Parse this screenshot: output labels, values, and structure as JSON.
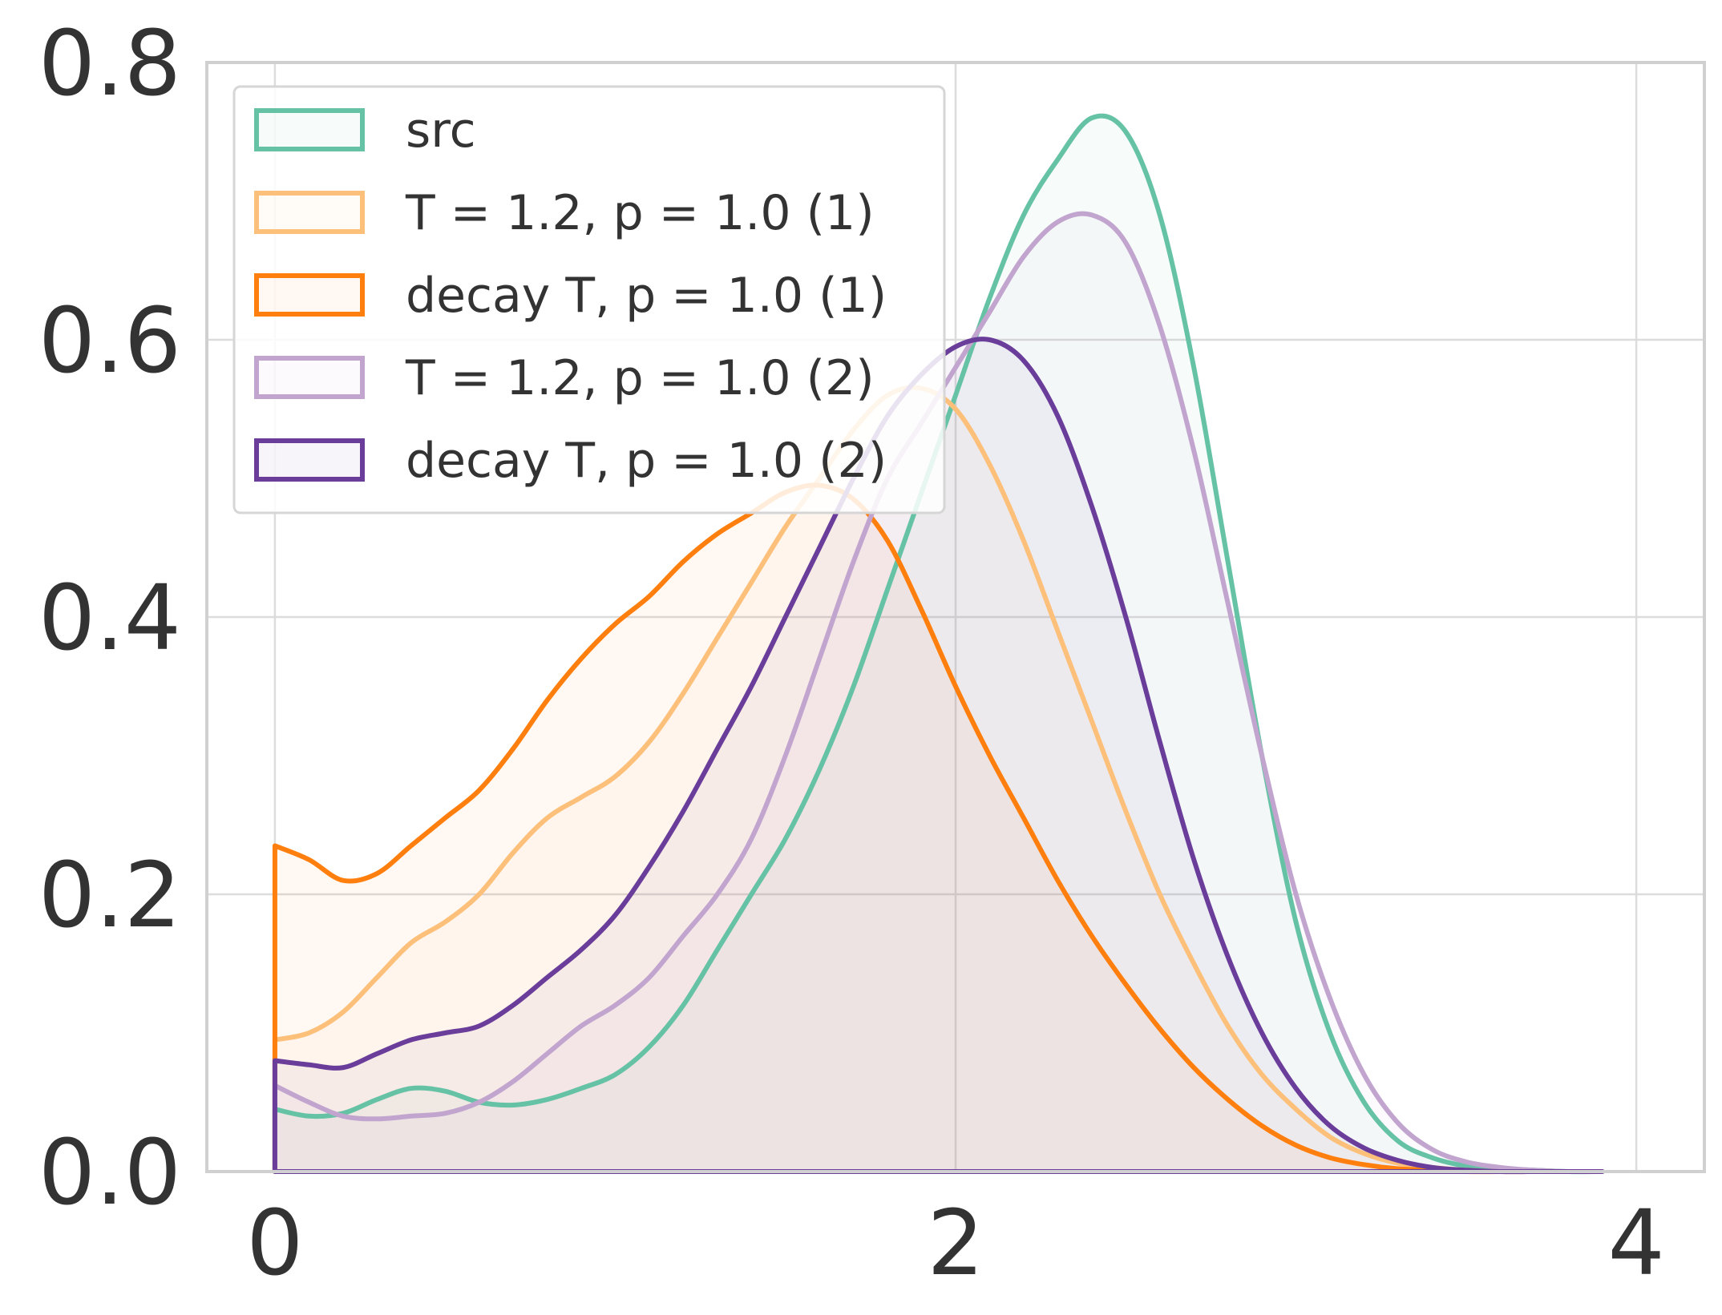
{
  "chart_data": {
    "type": "area",
    "title": "",
    "xlabel": "",
    "ylabel": "",
    "xlim": [
      -0.2,
      4.2
    ],
    "ylim": [
      0.0,
      0.8
    ],
    "xticks": [
      0,
      2,
      4
    ],
    "xtick_labels": [
      "0",
      "2",
      "4"
    ],
    "yticks": [
      0.0,
      0.2,
      0.4,
      0.6,
      0.8
    ],
    "ytick_labels": [
      "0.0",
      "0.2",
      "0.4",
      "0.6",
      "0.8"
    ],
    "grid": true,
    "legend_position": "top-left",
    "series": [
      {
        "name": "src",
        "color": "#66c2a5",
        "x": [
          0.0,
          0.1,
          0.2,
          0.3,
          0.4,
          0.5,
          0.6,
          0.7,
          0.8,
          0.9,
          1.0,
          1.1,
          1.2,
          1.3,
          1.4,
          1.5,
          1.6,
          1.7,
          1.8,
          1.9,
          2.0,
          2.1,
          2.2,
          2.3,
          2.4,
          2.5,
          2.6,
          2.7,
          2.8,
          2.9,
          3.0,
          3.1,
          3.2,
          3.3,
          3.4,
          3.5,
          3.6,
          3.7,
          3.8,
          3.9
        ],
        "values": [
          0.045,
          0.04,
          0.042,
          0.052,
          0.06,
          0.058,
          0.05,
          0.048,
          0.052,
          0.06,
          0.07,
          0.09,
          0.12,
          0.16,
          0.2,
          0.24,
          0.29,
          0.35,
          0.42,
          0.49,
          0.56,
          0.63,
          0.69,
          0.73,
          0.76,
          0.75,
          0.69,
          0.58,
          0.44,
          0.3,
          0.18,
          0.1,
          0.05,
          0.022,
          0.01,
          0.004,
          0.002,
          0.001,
          0.0,
          0.0
        ]
      },
      {
        "name": "T = 1.2, p = 1.0 (1)",
        "color": "#fdc07a",
        "x": [
          0.0,
          0.1,
          0.2,
          0.3,
          0.4,
          0.5,
          0.6,
          0.7,
          0.8,
          0.9,
          1.0,
          1.1,
          1.2,
          1.3,
          1.4,
          1.5,
          1.6,
          1.7,
          1.8,
          1.9,
          2.0,
          2.1,
          2.2,
          2.3,
          2.4,
          2.5,
          2.6,
          2.7,
          2.8,
          2.9,
          3.0,
          3.1,
          3.2,
          3.3,
          3.4,
          3.5,
          3.6,
          3.7,
          3.8,
          3.9
        ],
        "values": [
          0.095,
          0.1,
          0.115,
          0.14,
          0.165,
          0.18,
          0.2,
          0.23,
          0.255,
          0.27,
          0.285,
          0.31,
          0.345,
          0.385,
          0.425,
          0.465,
          0.5,
          0.535,
          0.56,
          0.565,
          0.55,
          0.51,
          0.455,
          0.39,
          0.325,
          0.26,
          0.2,
          0.15,
          0.105,
          0.07,
          0.045,
          0.025,
          0.013,
          0.006,
          0.003,
          0.001,
          0.0,
          0.0,
          0.0,
          0.0
        ]
      },
      {
        "name": "decay T, p = 1.0 (1)",
        "color": "#ff7f0e",
        "x": [
          0.0,
          0.1,
          0.2,
          0.3,
          0.4,
          0.5,
          0.6,
          0.7,
          0.8,
          0.9,
          1.0,
          1.1,
          1.2,
          1.3,
          1.4,
          1.5,
          1.6,
          1.7,
          1.8,
          1.9,
          2.0,
          2.1,
          2.2,
          2.3,
          2.4,
          2.5,
          2.6,
          2.7,
          2.8,
          2.9,
          3.0,
          3.1,
          3.2,
          3.3,
          3.4,
          3.5,
          3.6,
          3.7,
          3.8,
          3.9
        ],
        "values": [
          0.235,
          0.225,
          0.21,
          0.215,
          0.235,
          0.255,
          0.275,
          0.305,
          0.34,
          0.37,
          0.395,
          0.415,
          0.44,
          0.46,
          0.475,
          0.49,
          0.495,
          0.485,
          0.455,
          0.405,
          0.35,
          0.3,
          0.255,
          0.21,
          0.17,
          0.135,
          0.103,
          0.075,
          0.052,
          0.033,
          0.019,
          0.01,
          0.005,
          0.002,
          0.001,
          0.0,
          0.0,
          0.0,
          0.0,
          0.0
        ]
      },
      {
        "name": "T = 1.2, p = 1.0 (2)",
        "color": "#c2a5cf",
        "x": [
          0.0,
          0.1,
          0.2,
          0.3,
          0.4,
          0.5,
          0.6,
          0.7,
          0.8,
          0.9,
          1.0,
          1.1,
          1.2,
          1.3,
          1.4,
          1.5,
          1.6,
          1.7,
          1.8,
          1.9,
          2.0,
          2.1,
          2.2,
          2.3,
          2.4,
          2.5,
          2.6,
          2.7,
          2.8,
          2.9,
          3.0,
          3.1,
          3.2,
          3.3,
          3.4,
          3.5,
          3.6,
          3.7,
          3.8,
          3.9
        ],
        "values": [
          0.062,
          0.05,
          0.04,
          0.038,
          0.04,
          0.042,
          0.05,
          0.065,
          0.085,
          0.105,
          0.12,
          0.14,
          0.17,
          0.2,
          0.24,
          0.3,
          0.37,
          0.44,
          0.5,
          0.54,
          0.58,
          0.62,
          0.66,
          0.685,
          0.69,
          0.67,
          0.61,
          0.52,
          0.41,
          0.3,
          0.2,
          0.125,
          0.07,
          0.035,
          0.016,
          0.007,
          0.003,
          0.001,
          0.0,
          0.0
        ]
      },
      {
        "name": "decay T, p = 1.0 (2)",
        "color": "#6a3d9a",
        "x": [
          0.0,
          0.1,
          0.2,
          0.3,
          0.4,
          0.5,
          0.6,
          0.7,
          0.8,
          0.9,
          1.0,
          1.1,
          1.2,
          1.3,
          1.4,
          1.5,
          1.6,
          1.7,
          1.8,
          1.9,
          2.0,
          2.1,
          2.2,
          2.3,
          2.4,
          2.5,
          2.6,
          2.7,
          2.8,
          2.9,
          3.0,
          3.1,
          3.2,
          3.3,
          3.4,
          3.5,
          3.6,
          3.7,
          3.8,
          3.9
        ],
        "values": [
          0.08,
          0.077,
          0.075,
          0.085,
          0.095,
          0.1,
          0.105,
          0.12,
          0.14,
          0.16,
          0.185,
          0.22,
          0.26,
          0.305,
          0.35,
          0.4,
          0.45,
          0.5,
          0.545,
          0.575,
          0.595,
          0.6,
          0.585,
          0.545,
          0.48,
          0.4,
          0.31,
          0.225,
          0.155,
          0.1,
          0.06,
          0.033,
          0.017,
          0.008,
          0.003,
          0.001,
          0.0,
          0.0,
          0.0,
          0.0
        ]
      }
    ]
  }
}
